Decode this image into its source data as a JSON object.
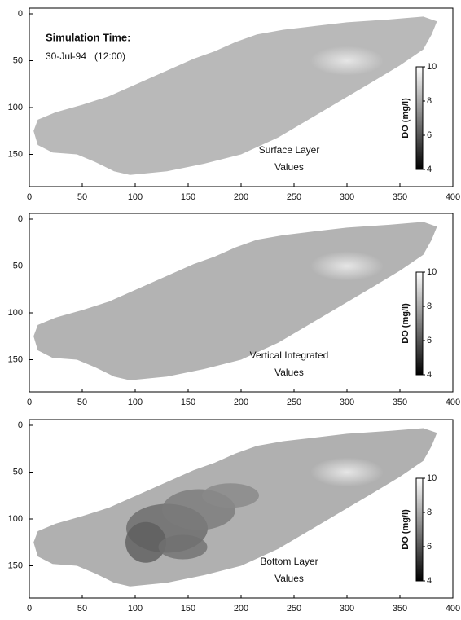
{
  "chart_data": [
    {
      "type": "map",
      "title": "Simulation Time:",
      "subtitle": "30-Jul-94   (12:00)",
      "annotation": [
        "Surface Layer",
        "Values"
      ],
      "xlim": [
        0,
        400
      ],
      "xticks": [
        0,
        50,
        100,
        150,
        200,
        250,
        300,
        350,
        400
      ],
      "ylim": [
        0,
        180
      ],
      "yticks": [
        0,
        50,
        100,
        150
      ],
      "y_inverted": true,
      "colorbar": {
        "label": "DO (mg/l)",
        "clim": [
          4,
          10
        ],
        "ticks": [
          4,
          6,
          8,
          10
        ]
      }
    },
    {
      "type": "map",
      "annotation": [
        "Vertical Integrated",
        "Values"
      ],
      "xlim": [
        0,
        400
      ],
      "xticks": [
        0,
        50,
        100,
        150,
        200,
        250,
        300,
        350,
        400
      ],
      "ylim": [
        0,
        180
      ],
      "yticks": [
        0,
        50,
        100,
        150
      ],
      "y_inverted": true,
      "colorbar": {
        "label": "DO (mg/l)",
        "clim": [
          4,
          10
        ],
        "ticks": [
          4,
          6,
          8,
          10
        ]
      }
    },
    {
      "type": "map",
      "annotation": [
        "Bottom Layer",
        "Values"
      ],
      "xlim": [
        0,
        400
      ],
      "xticks": [
        0,
        50,
        100,
        150,
        200,
        250,
        300,
        350,
        400
      ],
      "ylim": [
        0,
        180
      ],
      "yticks": [
        0,
        50,
        100,
        150
      ],
      "y_inverted": true,
      "colorbar": {
        "label": "DO (mg/l)",
        "clim": [
          4,
          10
        ],
        "ticks": [
          4,
          6,
          8,
          10
        ]
      }
    }
  ]
}
